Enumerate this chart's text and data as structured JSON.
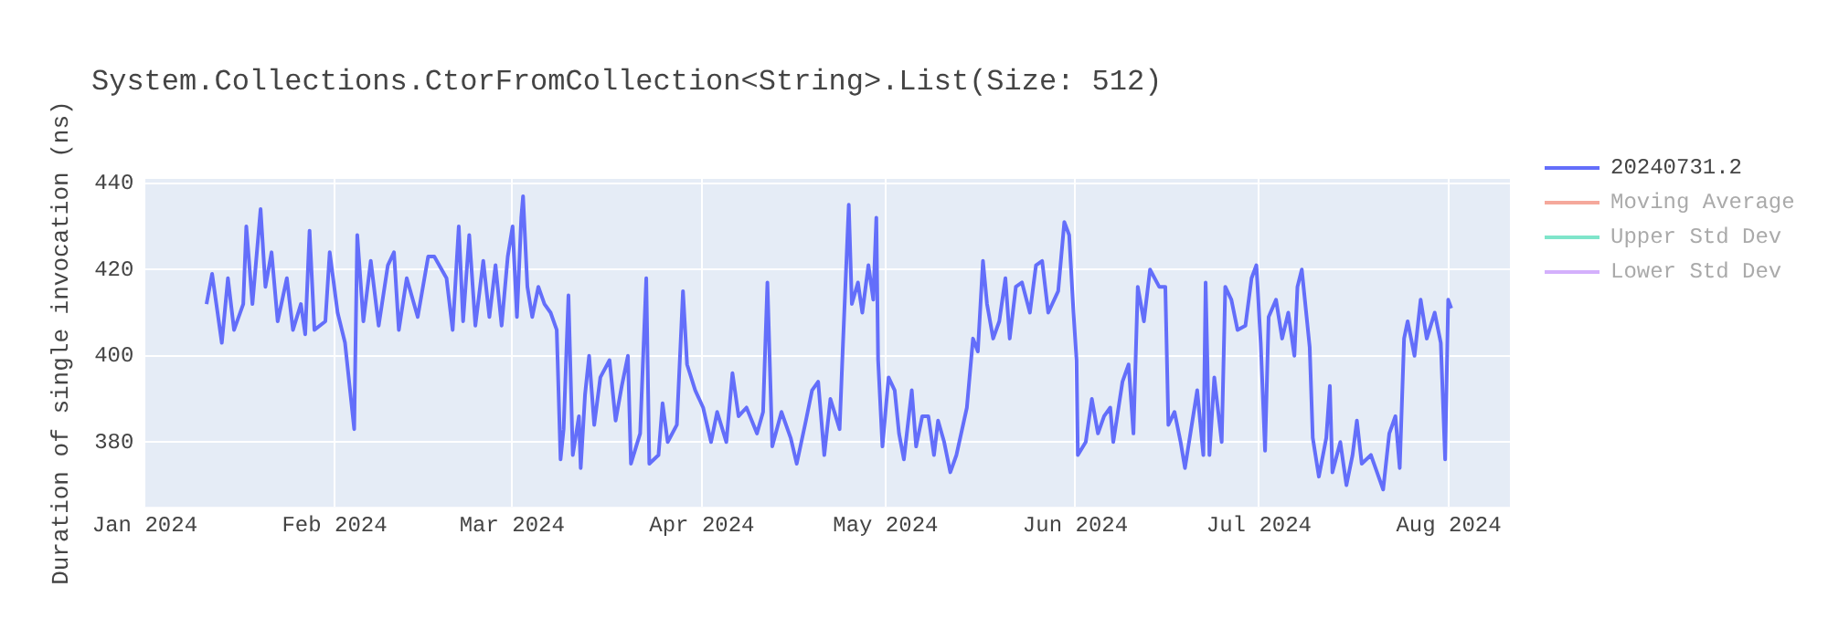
{
  "chart_data": {
    "type": "line",
    "title": "System.Collections.CtorFromCollection<String>.List(Size: 512)",
    "ylabel": "Duration of single invocation (ns)",
    "x": [
      "2024-01-11T02:00",
      "2024-01-12T00:00",
      "2024-01-13T14:00",
      "2024-01-14T14:00",
      "2024-01-15T14:00",
      "2024-01-17T02:00",
      "2024-01-17T14:00",
      "2024-01-18T14:00",
      "2024-01-19T22:00",
      "2024-01-20T17:00",
      "2024-01-21T17:00",
      "2024-01-22T17:00",
      "2024-01-24T05:00",
      "2024-01-25T05:00",
      "2024-01-26T12:00",
      "2024-01-27T05:00",
      "2024-01-27T22:00",
      "2024-01-28T17:00",
      "2024-01-30T12:00",
      "2024-01-31T05:00",
      "2024-02-01T12:00",
      "2024-02-02T17:00",
      "2024-02-04T05:00",
      "2024-02-04T17:00",
      "2024-02-05T17:00",
      "2024-02-06T22:00",
      "2024-02-08T05:00",
      "2024-02-09T17:00",
      "2024-02-10T17:00",
      "2024-02-11T12:00",
      "2024-02-12T19:00",
      "2024-02-14T14:00",
      "2024-02-16T07:00",
      "2024-02-17T07:00",
      "2024-02-19T07:00",
      "2024-02-20T07:00",
      "2024-02-21T07:00",
      "2024-02-22T00:00",
      "2024-02-23T00:00",
      "2024-02-24T00:00",
      "2024-02-25T07:00",
      "2024-02-26T07:00",
      "2024-02-27T07:00",
      "2024-02-28T07:00",
      "2024-02-29T07:00",
      "2024-03-01T02:00",
      "2024-03-01T19:00",
      "2024-03-02T12:00",
      "2024-03-02T19:00",
      "2024-03-03T12:00",
      "2024-03-04T07:00",
      "2024-03-05T07:00",
      "2024-03-06T07:00",
      "2024-03-07T07:00",
      "2024-03-08T07:00",
      "2024-03-08T22:00",
      "2024-03-09T10:00",
      "2024-03-10T05:00",
      "2024-03-10T22:00",
      "2024-03-11T22:00",
      "2024-03-12T05:00",
      "2024-03-12T22:00",
      "2024-03-13T14:00",
      "2024-03-14T10:00",
      "2024-03-15T10:00",
      "2024-03-16T22:00",
      "2024-03-17T22:00",
      "2024-03-18T22:00",
      "2024-03-19T22:00",
      "2024-03-20T10:00",
      "2024-03-21T22:00",
      "2024-03-22T22:00",
      "2024-03-23T10:00",
      "2024-03-24T22:00",
      "2024-03-25T14:00",
      "2024-03-26T10:00",
      "2024-03-27T22:00",
      "2024-03-28T22:00",
      "2024-03-29T14:00",
      "2024-03-30T22:00",
      "2024-04-01T05:00",
      "2024-04-02T12:00",
      "2024-04-03T12:00",
      "2024-04-05T00:00",
      "2024-04-06T00:00",
      "2024-04-07T00:00",
      "2024-04-08T07:00",
      "2024-04-10T00:00",
      "2024-04-11T00:00",
      "2024-04-11T17:00",
      "2024-04-12T12:00",
      "2024-04-14T00:00",
      "2024-04-15T12:00",
      "2024-04-16T12:00",
      "2024-04-18T00:00",
      "2024-04-19T00:00",
      "2024-04-20T00:00",
      "2024-04-21T00:00",
      "2024-04-22T00:00",
      "2024-04-23T12:00",
      "2024-04-24T00:00",
      "2024-04-25T00:00",
      "2024-04-25T12:00",
      "2024-04-26T12:00",
      "2024-04-27T05:00",
      "2024-04-28T05:00",
      "2024-04-29T00:00",
      "2024-04-29T12:00",
      "2024-04-29T19:00",
      "2024-04-30T12:00",
      "2024-05-01T12:00",
      "2024-05-02T12:00",
      "2024-05-03T05:00",
      "2024-05-04T00:00",
      "2024-05-05T07:00",
      "2024-05-06T00:00",
      "2024-05-07T00:00",
      "2024-05-08T00:00",
      "2024-05-08T22:00",
      "2024-05-09T14:00",
      "2024-05-10T14:00",
      "2024-05-11T14:00",
      "2024-05-12T14:00",
      "2024-05-14T07:00",
      "2024-05-15T07:00",
      "2024-05-16T02:00",
      "2024-05-16T22:00",
      "2024-05-17T14:00",
      "2024-05-18T14:00",
      "2024-05-19T14:00",
      "2024-05-20T14:00",
      "2024-05-21T07:00",
      "2024-05-22T07:00",
      "2024-05-23T07:00",
      "2024-05-24T14:00",
      "2024-05-25T14:00",
      "2024-05-26T14:00",
      "2024-05-27T14:00",
      "2024-05-29T05:00",
      "2024-05-30T05:00",
      "2024-05-31T00:00",
      "2024-05-31T17:00",
      "2024-06-01T05:00",
      "2024-06-01T10:00",
      "2024-06-02T17:00",
      "2024-06-03T17:00",
      "2024-06-04T17:00",
      "2024-06-05T17:00",
      "2024-06-06T17:00",
      "2024-06-07T05:00",
      "2024-06-08T17:00",
      "2024-06-09T17:00",
      "2024-06-10T12:00",
      "2024-06-11T05:00",
      "2024-06-12T05:00",
      "2024-06-13T05:00",
      "2024-06-14T17:00",
      "2024-06-15T17:00",
      "2024-06-16T05:00",
      "2024-06-17T05:00",
      "2024-06-18T05:00",
      "2024-06-18T22:00",
      "2024-06-19T22:00",
      "2024-06-20T22:00",
      "2024-06-21T22:00",
      "2024-06-22T07:00",
      "2024-06-22T22:00",
      "2024-06-23T17:00",
      "2024-06-24T22:00",
      "2024-06-25T12:00",
      "2024-06-26T12:00",
      "2024-06-27T12:00",
      "2024-06-28T19:00",
      "2024-06-29T19:00",
      "2024-06-30T14:00",
      "2024-07-01T07:00",
      "2024-07-02T00:00",
      "2024-07-02T14:00",
      "2024-07-03T19:00",
      "2024-07-04T19:00",
      "2024-07-05T19:00",
      "2024-07-06T19:00",
      "2024-07-07T07:00",
      "2024-07-08T00:00",
      "2024-07-09T07:00",
      "2024-07-09T19:00",
      "2024-07-10T19:00",
      "2024-07-12T00:00",
      "2024-07-12T14:00",
      "2024-07-13T00:00",
      "2024-07-14T07:00",
      "2024-07-15T07:00",
      "2024-07-16T07:00",
      "2024-07-17T00:00",
      "2024-07-17T19:00",
      "2024-07-19T07:00",
      "2024-07-20T07:00",
      "2024-07-21T07:00",
      "2024-07-22T07:00",
      "2024-07-23T07:00",
      "2024-07-24T00:00",
      "2024-07-24T17:00",
      "2024-07-25T07:00",
      "2024-07-26T10:00",
      "2024-07-27T10:00",
      "2024-07-28T10:00",
      "2024-07-29T17:00",
      "2024-07-30T17:00",
      "2024-07-31T10:00",
      "2024-07-31T22:00",
      "2024-08-01T10:00"
    ],
    "series": [
      {
        "name": "20240731.2",
        "color": "#636efa",
        "values": [
          412,
          419,
          403,
          418,
          406,
          412,
          430,
          412,
          434,
          416,
          424,
          408,
          418,
          406,
          412,
          405,
          429,
          406,
          408,
          424,
          410,
          403,
          383,
          428,
          408,
          422,
          407,
          421,
          424,
          406,
          418,
          409,
          423,
          423,
          418,
          406,
          430,
          408,
          428,
          407,
          422,
          409,
          421,
          407,
          423,
          430,
          409,
          432,
          437,
          416,
          409,
          416,
          412,
          410,
          406,
          376,
          383,
          414,
          377,
          386,
          374,
          391,
          400,
          384,
          395,
          399,
          385,
          393,
          400,
          375,
          382,
          418,
          375,
          377,
          389,
          380,
          384,
          415,
          398,
          392,
          388,
          380,
          387,
          380,
          396,
          386,
          388,
          382,
          387,
          417,
          379,
          387,
          381,
          375,
          385,
          392,
          394,
          377,
          390,
          383,
          401,
          435,
          412,
          417,
          410,
          421,
          413,
          432,
          399,
          379,
          395,
          392,
          382,
          376,
          392,
          379,
          386,
          386,
          377,
          385,
          380,
          373,
          377,
          388,
          404,
          401,
          422,
          412,
          404,
          408,
          418,
          404,
          416,
          417,
          410,
          421,
          422,
          410,
          415,
          431,
          428,
          410,
          399,
          377,
          380,
          390,
          382,
          386,
          388,
          380,
          394,
          398,
          382,
          416,
          408,
          420,
          416,
          416,
          384,
          387,
          380,
          374,
          383,
          392,
          377,
          417,
          377,
          395,
          380,
          416,
          413,
          406,
          407,
          418,
          421,
          403,
          378,
          409,
          413,
          404,
          410,
          400,
          416,
          420,
          402,
          381,
          372,
          381,
          393,
          373,
          380,
          370,
          377,
          385,
          375,
          377,
          373,
          369,
          382,
          386,
          374,
          404,
          408,
          400,
          413,
          404,
          410,
          403,
          376,
          413,
          411
        ]
      },
      {
        "name": "Moving Average",
        "color": "#f5a89b",
        "values": [
          null,
          null,
          null,
          null,
          null,
          null,
          null,
          null,
          null,
          null,
          null,
          null,
          null,
          null,
          null,
          null,
          null,
          null,
          null,
          null,
          null,
          null,
          null,
          null,
          null,
          null,
          null,
          null,
          null,
          null,
          null,
          null,
          null,
          null,
          null,
          null,
          null,
          null,
          null,
          null,
          null,
          null,
          null,
          null,
          null,
          null,
          null,
          null,
          null,
          null,
          null,
          null,
          null,
          null,
          null,
          null,
          null,
          null,
          null,
          null,
          null,
          null,
          null,
          null,
          null,
          null,
          null,
          null,
          null,
          null,
          null,
          null,
          null,
          null,
          null,
          null,
          null,
          null,
          null,
          null,
          null,
          null,
          null,
          null,
          null,
          null,
          null,
          null,
          null,
          null,
          null,
          null,
          null,
          null,
          null,
          null,
          null,
          null,
          null,
          null,
          null,
          null,
          null,
          null,
          null,
          null,
          null,
          null,
          null,
          null,
          null,
          null,
          null,
          null,
          null,
          null,
          null,
          null,
          null,
          null,
          null,
          null,
          null,
          null,
          null,
          null,
          null,
          null,
          null,
          null,
          null,
          null,
          null,
          null,
          null,
          null,
          null,
          null,
          null,
          null,
          null,
          null,
          null,
          null,
          null,
          null,
          null,
          null,
          null,
          null,
          null,
          null,
          null,
          null,
          null,
          null,
          null,
          null,
          null,
          null,
          null,
          null,
          null,
          null,
          null,
          null,
          null,
          null,
          null,
          null,
          null,
          null,
          null,
          null,
          null,
          null,
          null,
          null,
          null,
          null,
          null,
          null,
          null,
          null,
          null,
          null,
          null,
          null,
          null,
          null,
          null,
          null,
          null,
          null,
          null,
          null,
          null,
          null,
          null,
          null,
          null,
          null,
          null,
          null,
          null,
          null,
          null,
          null,
          null,
          null,
          null
        ]
      },
      {
        "name": "Upper Std Dev",
        "color": "#7fe5ca",
        "values": [
          null,
          null,
          null,
          null,
          null,
          null,
          null,
          null,
          null,
          null,
          null,
          null,
          null,
          null,
          null,
          null,
          null,
          null,
          null,
          null,
          null,
          null,
          null,
          null,
          null,
          null,
          null,
          null,
          null,
          null,
          null,
          null,
          null,
          null,
          null,
          null,
          null,
          null,
          null,
          null,
          null,
          null,
          null,
          null,
          null,
          null,
          null,
          null,
          null,
          null,
          null,
          null,
          null,
          null,
          null,
          null,
          null,
          null,
          null,
          null,
          null,
          null,
          null,
          null,
          null,
          null,
          null,
          null,
          null,
          null,
          null,
          null,
          null,
          null,
          null,
          null,
          null,
          null,
          null,
          null,
          null,
          null,
          null,
          null,
          null,
          null,
          null,
          null,
          null,
          null,
          null,
          null,
          null,
          null,
          null,
          null,
          null,
          null,
          null,
          null,
          null,
          null,
          null,
          null,
          null,
          null,
          null,
          null,
          null,
          null,
          null,
          null,
          null,
          null,
          null,
          null,
          null,
          null,
          null,
          null,
          null,
          null,
          null,
          null,
          null,
          null,
          null,
          null,
          null,
          null,
          null,
          null,
          null,
          null,
          null,
          null,
          null,
          null,
          null,
          null,
          null,
          null,
          null,
          null,
          null,
          null,
          null,
          null,
          null,
          null,
          null,
          null,
          null,
          null,
          null,
          null,
          null,
          null,
          null,
          null,
          null,
          null,
          null,
          null,
          null,
          null,
          null,
          null,
          null,
          null,
          null,
          null,
          null,
          null,
          null,
          null,
          null,
          null,
          null,
          null,
          null,
          null,
          null,
          null,
          null,
          null,
          null,
          null,
          null,
          null,
          null,
          null,
          null,
          null,
          null,
          null,
          null,
          null,
          null,
          null,
          null,
          null,
          null,
          null,
          null,
          null,
          null,
          null,
          null,
          null,
          null
        ]
      },
      {
        "name": "Lower Std Dev",
        "color": "#d4b0fc",
        "values": [
          null,
          null,
          null,
          null,
          null,
          null,
          null,
          null,
          null,
          null,
          null,
          null,
          null,
          null,
          null,
          null,
          null,
          null,
          null,
          null,
          null,
          null,
          null,
          null,
          null,
          null,
          null,
          null,
          null,
          null,
          null,
          null,
          null,
          null,
          null,
          null,
          null,
          null,
          null,
          null,
          null,
          null,
          null,
          null,
          null,
          null,
          null,
          null,
          null,
          null,
          null,
          null,
          null,
          null,
          null,
          null,
          null,
          null,
          null,
          null,
          null,
          null,
          null,
          null,
          null,
          null,
          null,
          null,
          null,
          null,
          null,
          null,
          null,
          null,
          null,
          null,
          null,
          null,
          null,
          null,
          null,
          null,
          null,
          null,
          null,
          null,
          null,
          null,
          null,
          null,
          null,
          null,
          null,
          null,
          null,
          null,
          null,
          null,
          null,
          null,
          null,
          null,
          null,
          null,
          null,
          null,
          null,
          null,
          null,
          null,
          null,
          null,
          null,
          null,
          null,
          null,
          null,
          null,
          null,
          null,
          null,
          null,
          null,
          null,
          null,
          null,
          null,
          null,
          null,
          null,
          null,
          null,
          null,
          null,
          null,
          null,
          null,
          null,
          null,
          null,
          null,
          null,
          null,
          null,
          null,
          null,
          null,
          null,
          null,
          null,
          null,
          null,
          null,
          null,
          null,
          null,
          null,
          null,
          null,
          null,
          null,
          null,
          null,
          null,
          null,
          null,
          null,
          null,
          null,
          null,
          null,
          null,
          null,
          null,
          null,
          null,
          null,
          null,
          null,
          null,
          null,
          null,
          null,
          null,
          null,
          null,
          null,
          null,
          null,
          null,
          null,
          null,
          null,
          null,
          null,
          null,
          null,
          null,
          null,
          null,
          null,
          null,
          null,
          null,
          null,
          null,
          null,
          null,
          null,
          null,
          null
        ]
      }
    ],
    "xlim": [
      "2024-01-01",
      "2024-08-11"
    ],
    "xticks": [
      {
        "value": "2024-01-01",
        "label": "Jan 2024"
      },
      {
        "value": "2024-02-01",
        "label": "Feb 2024"
      },
      {
        "value": "2024-03-01",
        "label": "Mar 2024"
      },
      {
        "value": "2024-04-01",
        "label": "Apr 2024"
      },
      {
        "value": "2024-05-01",
        "label": "May 2024"
      },
      {
        "value": "2024-06-01",
        "label": "Jun 2024"
      },
      {
        "value": "2024-07-01",
        "label": "Jul 2024"
      },
      {
        "value": "2024-08-01",
        "label": "Aug 2024"
      }
    ],
    "ylim": [
      365,
      441
    ],
    "yticks": [
      380,
      400,
      420,
      440
    ],
    "grid": true,
    "legend": "right",
    "marker": "none",
    "line_style": "solid"
  }
}
